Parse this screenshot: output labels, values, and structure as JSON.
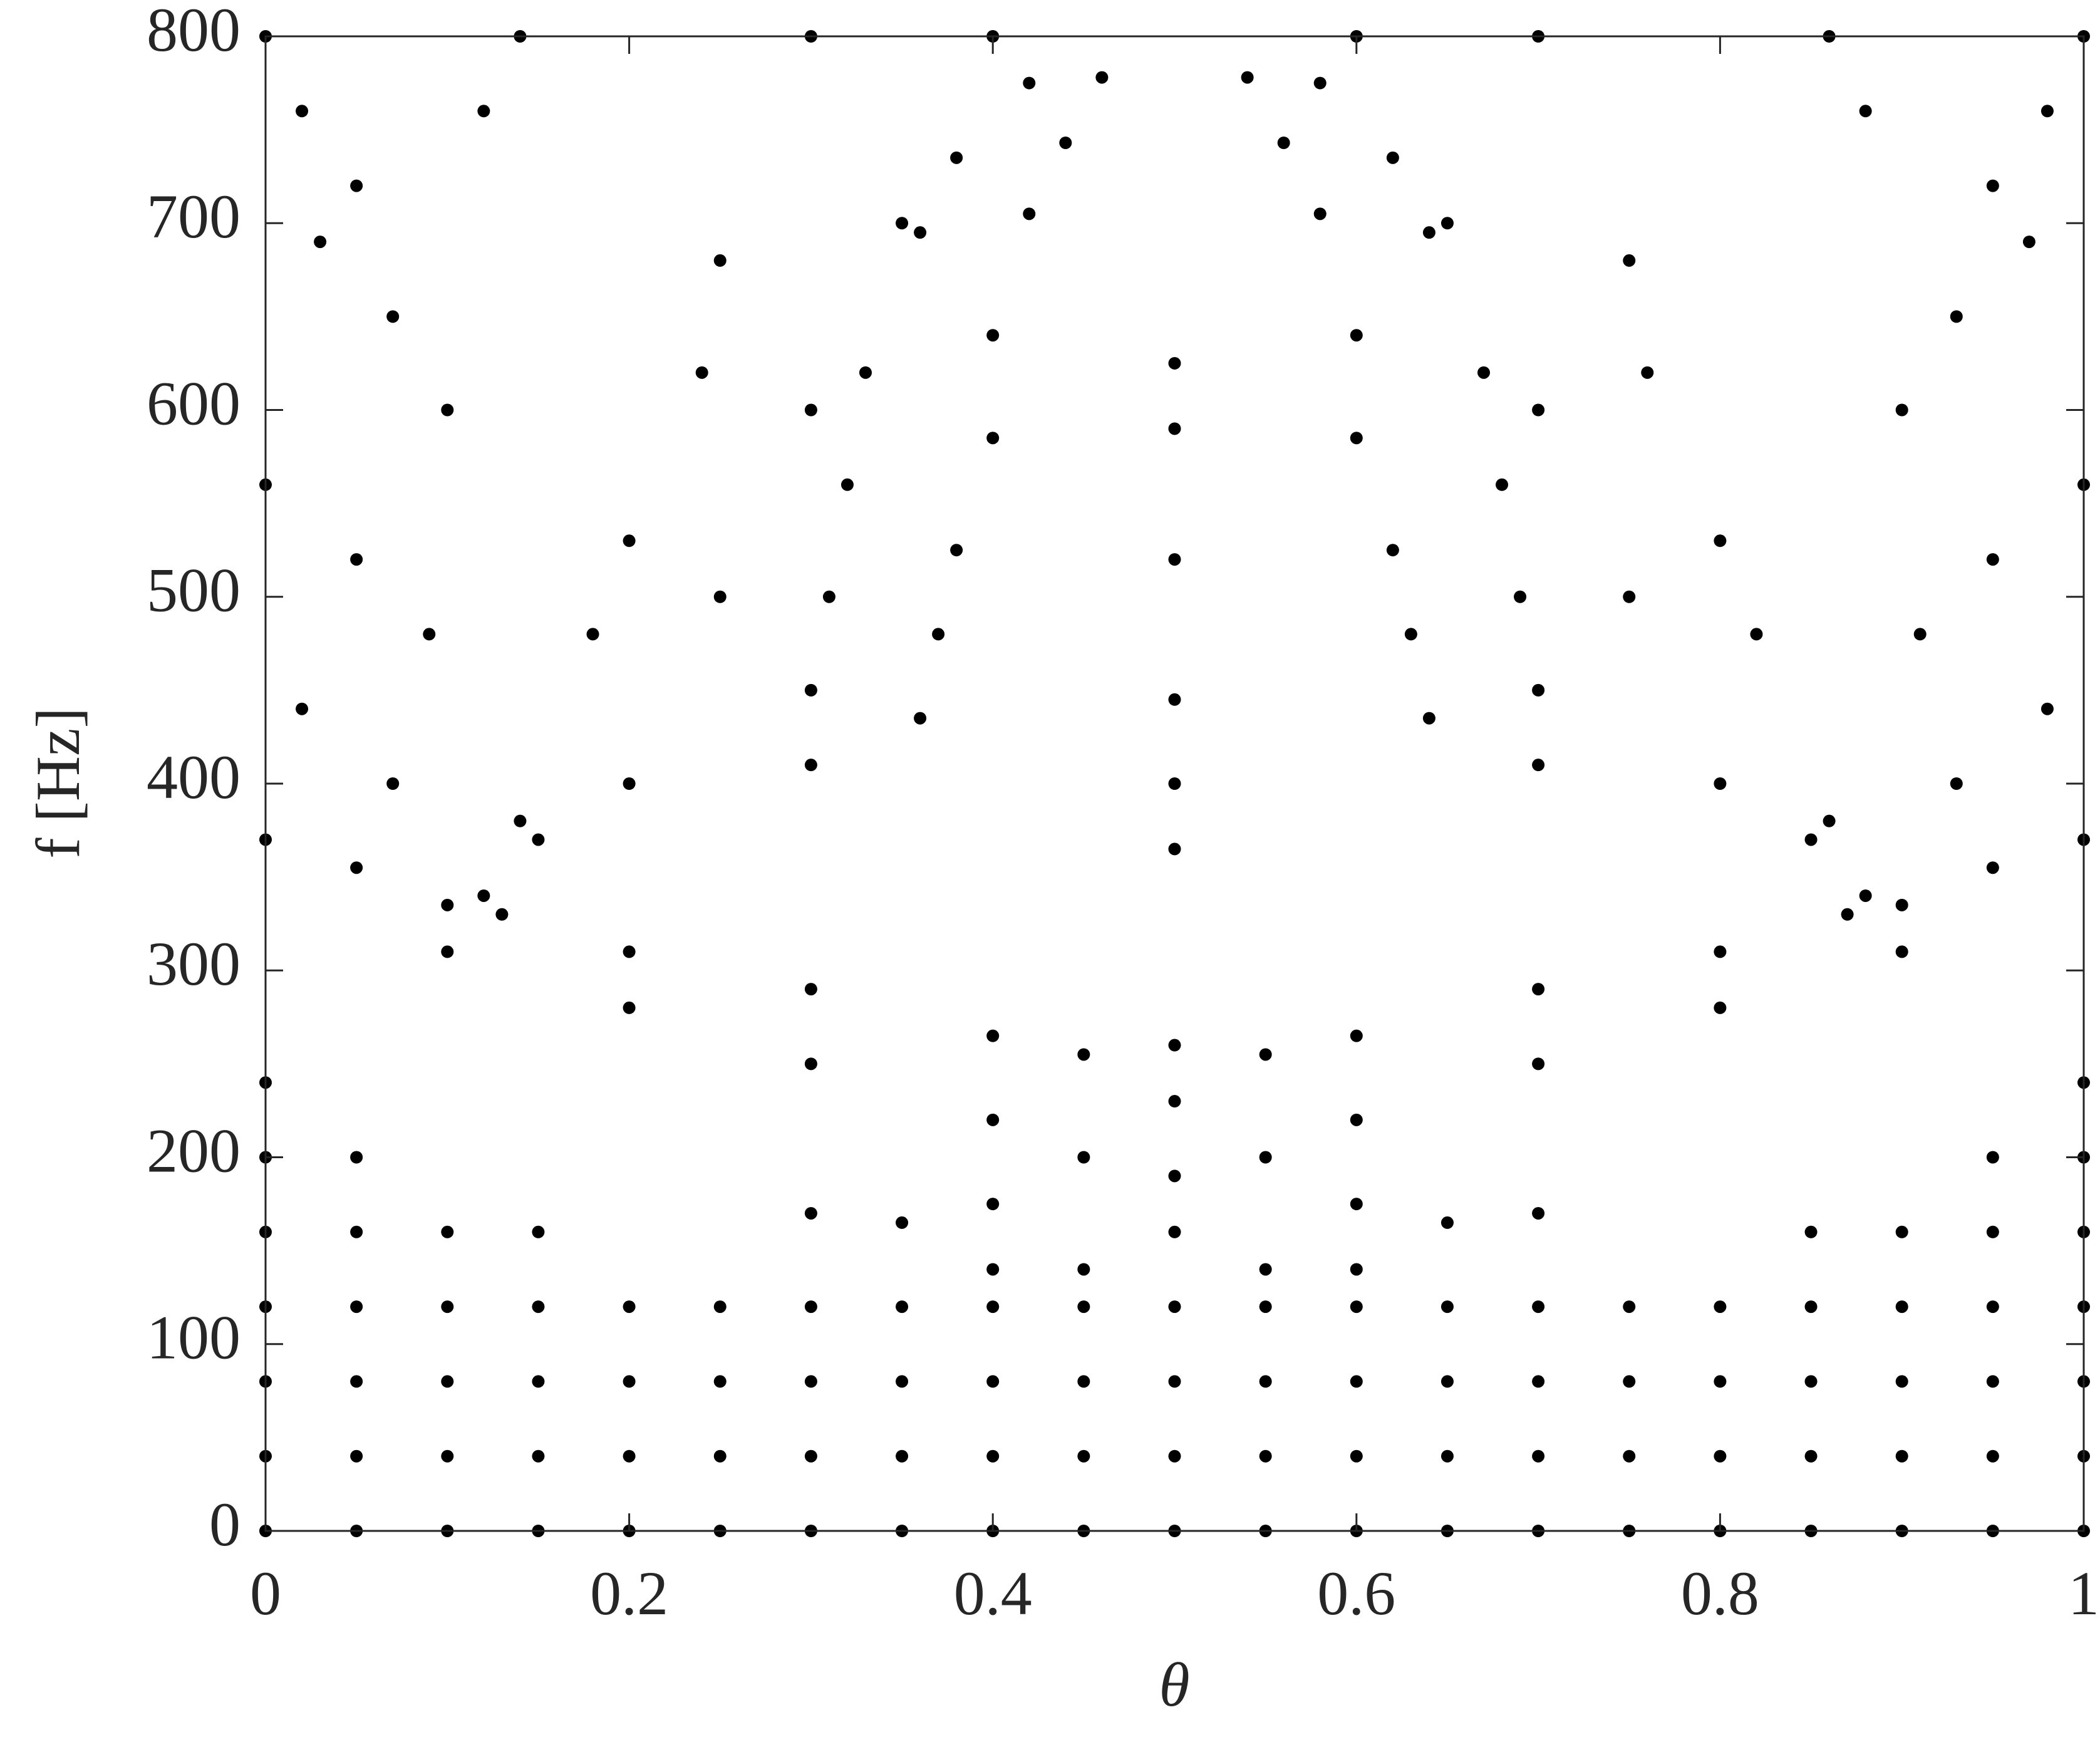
{
  "chart_data": {
    "type": "scatter",
    "x_label": "θ",
    "y_label": "f [Hz]",
    "xlim": [
      0,
      1
    ],
    "ylim": [
      0,
      800
    ],
    "xticks": [
      0,
      0.2,
      0.4,
      0.6,
      0.8,
      1
    ],
    "yticks": [
      0,
      100,
      200,
      300,
      400,
      500,
      600,
      700,
      800
    ],
    "grid": false,
    "series": [
      {
        "color": "#000000",
        "x": [
          0,
          0,
          0,
          0,
          0,
          0,
          0,
          0.05,
          0.05,
          0.05,
          0.05,
          0.05,
          0.05,
          0.1,
          0.1,
          0.1,
          0.1,
          0.1,
          0.15,
          0.15,
          0.15,
          0.15,
          0.15,
          0.2,
          0.2,
          0.2,
          0.2,
          0.25,
          0.25,
          0.25,
          0.25,
          0.3,
          0.3,
          0.3,
          0.3,
          0.35,
          0.35,
          0.35,
          0.35,
          0.4,
          0.4,
          0.4,
          0.4,
          0.4,
          0.45,
          0.45,
          0.45,
          0.45,
          0.45,
          0.5,
          0.5,
          0.5,
          0.5,
          0.5,
          0.55,
          0.55,
          0.55,
          0.55,
          0.55,
          0.6,
          0.6,
          0.6,
          0.6,
          0.6,
          0.65,
          0.65,
          0.65,
          0.65,
          0.7,
          0.7,
          0.7,
          0.7,
          0.75,
          0.75,
          0.75,
          0.75,
          0.8,
          0.8,
          0.8,
          0.8,
          0.85,
          0.85,
          0.85,
          0.85,
          0.85,
          0.9,
          0.9,
          0.9,
          0.9,
          0.9,
          0.95,
          0.95,
          0.95,
          0.95,
          0.95,
          0.95,
          1,
          1,
          1,
          1,
          1,
          1,
          1,
          0.1,
          0.2,
          0.3,
          0.4,
          0.5,
          0.6,
          0.7,
          0.8,
          0.9,
          0.13,
          0.2,
          0.3,
          0.4,
          0.45,
          0.5,
          0.55,
          0.6,
          0.7,
          0.8,
          0.87,
          0.3,
          0.35,
          0.4,
          0.45,
          0.5,
          0.55,
          0.6,
          0.65,
          0.7,
          0,
          0.05,
          0.1,
          0.9,
          0.95,
          1,
          0.42,
          0.46,
          0.54,
          0.58,
          0.38,
          0.44,
          0.56,
          0.62,
          0.36,
          0.42,
          0.58,
          0.64,
          0.33,
          0.4,
          0.6,
          0.67,
          0.32,
          0.4,
          0.6,
          0.68,
          0.31,
          0.38,
          0.62,
          0.69,
          0.3,
          0.37,
          0.63,
          0.7,
          0.3,
          0.36,
          0.64,
          0.7,
          0.5,
          0.5,
          0.5,
          0.5,
          0.5,
          0.5,
          0.4,
          0.35,
          0.3,
          0.25,
          0.2,
          0.15,
          0.6,
          0.65,
          0.7,
          0.75,
          0.8,
          0.85,
          0.12,
          0.18,
          0.24,
          0.3,
          0.14,
          0.2,
          0.25,
          0.88,
          0.82,
          0.76,
          0.7,
          0.86,
          0.8,
          0.75,
          0,
          0.02,
          0.05,
          0.03,
          0.07,
          0.1,
          0,
          0.05,
          0.09,
          0.02,
          0.07,
          0.12,
          0.14,
          1,
          0.98,
          0.95,
          0.97,
          0.93,
          0.9,
          1,
          0.95,
          0.91,
          0.98,
          0.93,
          0.88,
          0.86
        ],
        "values": [
          0,
          40,
          80,
          120,
          160,
          200,
          240,
          0,
          40,
          80,
          120,
          160,
          200,
          0,
          40,
          80,
          120,
          160,
          0,
          40,
          80,
          120,
          160,
          0,
          40,
          80,
          120,
          0,
          40,
          80,
          120,
          0,
          40,
          80,
          120,
          0,
          40,
          80,
          120,
          0,
          40,
          80,
          120,
          140,
          0,
          40,
          80,
          120,
          140,
          0,
          40,
          80,
          120,
          160,
          0,
          40,
          80,
          120,
          140,
          0,
          40,
          80,
          120,
          140,
          0,
          40,
          80,
          120,
          0,
          40,
          80,
          120,
          0,
          40,
          80,
          120,
          0,
          40,
          80,
          120,
          0,
          40,
          80,
          120,
          160,
          0,
          40,
          80,
          120,
          160,
          0,
          40,
          80,
          120,
          160,
          200,
          0,
          40,
          80,
          120,
          160,
          200,
          240,
          310,
          280,
          250,
          220,
          190,
          220,
          250,
          280,
          310,
          330,
          310,
          290,
          265,
          255,
          260,
          255,
          265,
          290,
          310,
          330,
          170,
          165,
          175,
          200,
          230,
          200,
          175,
          165,
          170,
          370,
          355,
          335,
          335,
          355,
          370,
          775,
          778,
          778,
          775,
          735,
          743,
          743,
          735,
          695,
          705,
          705,
          695,
          620,
          640,
          640,
          620,
          560,
          585,
          585,
          560,
          500,
          525,
          525,
          500,
          450,
          480,
          480,
          450,
          410,
          435,
          435,
          410,
          365,
          400,
          445,
          520,
          590,
          625,
          800,
          700,
          600,
          500,
          400,
          370,
          800,
          700,
          600,
          500,
          400,
          370,
          340,
          480,
          620,
          800,
          380,
          530,
          680,
          340,
          480,
          620,
          800,
          380,
          530,
          680,
          800,
          760,
          720,
          690,
          650,
          600,
          560,
          520,
          480,
          440,
          400,
          760,
          800,
          800,
          760,
          720,
          690,
          650,
          600,
          560,
          520,
          480,
          440,
          400,
          760,
          800
        ]
      }
    ]
  }
}
